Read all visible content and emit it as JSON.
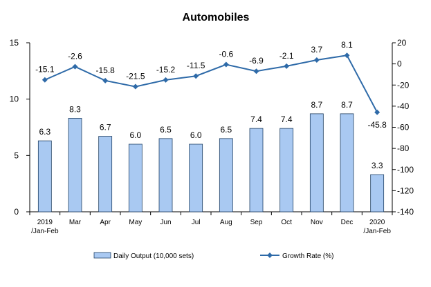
{
  "chart_data": {
    "type": "bar",
    "title": "Automobiles",
    "categories": [
      "2019 /Jan-Feb",
      "Mar",
      "Apr",
      "May",
      "Jun",
      "Jul",
      "Aug",
      "Sep",
      "Oct",
      "Nov",
      "Dec",
      "2020 /Jan-Feb"
    ],
    "category_lines": [
      [
        "2019",
        "/Jan-Feb"
      ],
      [
        "Mar"
      ],
      [
        "Apr"
      ],
      [
        "May"
      ],
      [
        "Jun"
      ],
      [
        "Jul"
      ],
      [
        "Aug"
      ],
      [
        "Sep"
      ],
      [
        "Oct"
      ],
      [
        "Nov"
      ],
      [
        "Dec"
      ],
      [
        "2020",
        "/Jan-Feb"
      ]
    ],
    "series": [
      {
        "name": "Daily Output (10,000 sets)",
        "type": "bar",
        "axis": "left",
        "color": "#a9c9f2",
        "values": [
          6.3,
          8.3,
          6.7,
          6.0,
          6.5,
          6.0,
          6.5,
          7.4,
          7.4,
          8.7,
          8.7,
          3.3
        ],
        "labels": [
          "6.3",
          "8.3",
          "6.7",
          "6.0",
          "6.5",
          "6.0",
          "6.5",
          "7.4",
          "7.4",
          "8.7",
          "8.7",
          "3.3"
        ]
      },
      {
        "name": "Growth Rate (%)",
        "type": "line",
        "axis": "right",
        "color": "#2e6aa8",
        "values": [
          -15.1,
          -2.6,
          -15.8,
          -21.5,
          -15.2,
          -11.5,
          -0.6,
          -6.9,
          -2.1,
          3.7,
          8.1,
          -45.8
        ],
        "labels": [
          "-15.1",
          "-2.6",
          "-15.8",
          "-21.5",
          "-15.2",
          "-11.5",
          "-0.6",
          "-6.9",
          "-2.1",
          "3.7",
          "8.1",
          "-45.8"
        ]
      }
    ],
    "y_left": {
      "min": 0,
      "max": 15,
      "ticks": [
        0,
        5,
        10,
        15
      ]
    },
    "y_right": {
      "min": -140,
      "max": 20,
      "ticks": [
        20,
        0,
        -20,
        -40,
        -60,
        -80,
        -100,
        -120,
        -140
      ]
    },
    "grid": false,
    "legend_position": "bottom"
  }
}
